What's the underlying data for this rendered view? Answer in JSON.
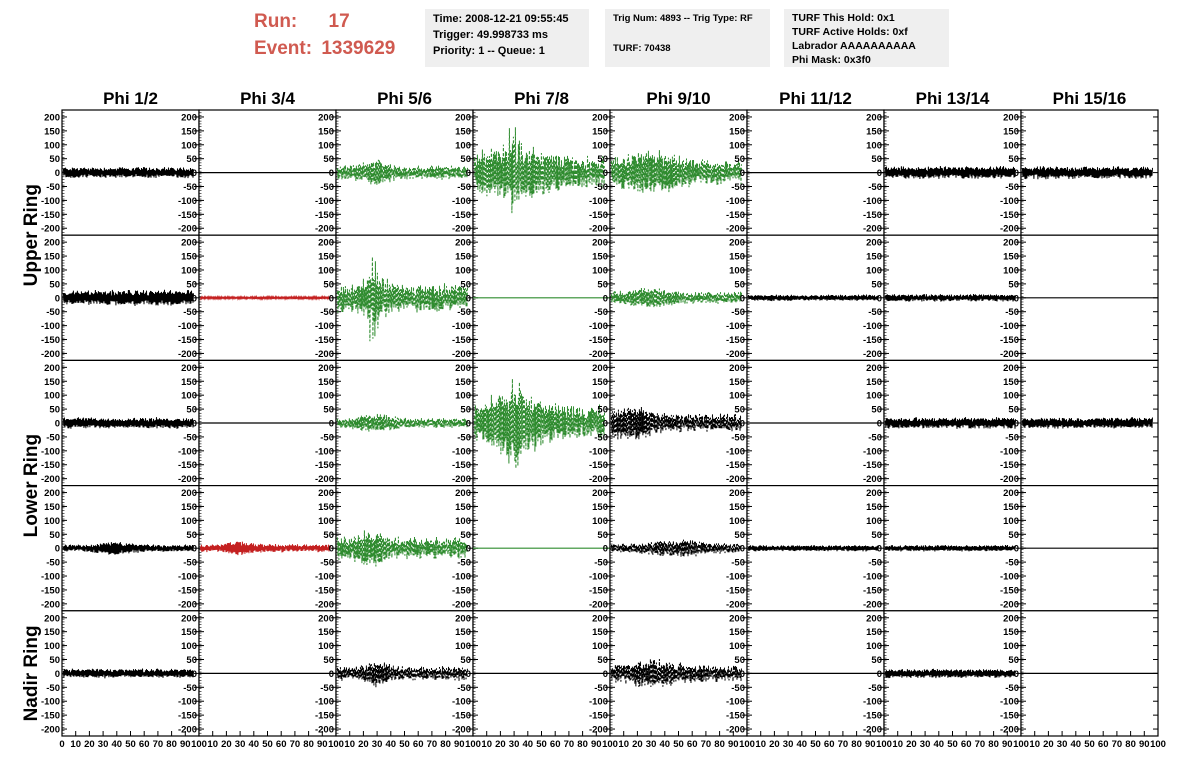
{
  "header": {
    "run_label": "Run:",
    "run_value": "17",
    "event_label": "Event:",
    "event_value": "1339629",
    "time": "Time: 2008-12-21 09:55:45",
    "trigger": "Trigger: 49.998733 ms",
    "priority": "Priority: 1 -- Queue: 1",
    "trig_num": "Trig Num: 4893 -- Trig Type: RF",
    "turf": "TURF: 70438",
    "turf_this_hold": "TURF This Hold: 0x1",
    "turf_active_holds": "TURF Active Holds: 0xf",
    "labrador": "Labrador AAAAAAAAAA",
    "phi_mask": "Phi Mask: 0x3f0"
  },
  "colors": {
    "normal": "#000000",
    "triggered": "#2e8b2e",
    "masked": "#c42020"
  },
  "chart_data": {
    "type": "line",
    "phi_labels": [
      "Phi 1/2",
      "Phi 3/4",
      "Phi 5/6",
      "Phi 7/8",
      "Phi 9/10",
      "Phi 11/12",
      "Phi 13/14",
      "Phi 15/16"
    ],
    "ring_labels": [
      {
        "text": "Upper Ring",
        "rows": [
          0,
          1
        ]
      },
      {
        "text": "Lower Ring",
        "rows": [
          2,
          3
        ]
      },
      {
        "text": "Nadir Ring",
        "rows": [
          4
        ]
      }
    ],
    "xlim": [
      0,
      100
    ],
    "ylim": [
      -225,
      225
    ],
    "x_ticks": [
      0,
      10,
      20,
      30,
      40,
      50,
      60,
      70,
      80,
      90,
      100
    ],
    "x_tick_labels": [
      "0",
      "10",
      "20",
      "30",
      "40",
      "50",
      "60",
      "70",
      "80",
      "90",
      "100"
    ],
    "y_ticks": [
      200,
      150,
      100,
      50,
      0,
      -50,
      -100,
      -150,
      -200
    ],
    "y_tick_labels": [
      "200",
      "150",
      "100",
      "50",
      "0",
      "-50",
      "-100",
      "-150",
      "-200"
    ],
    "waveforms": [
      [
        {
          "style": "normal",
          "amp": 18,
          "peak": 0,
          "pw": 0
        },
        {
          "style": "flat",
          "amp": 0,
          "peak": 0,
          "pw": 0
        },
        {
          "style": "triggered",
          "amp": 35,
          "peak": 30,
          "pw": 12
        },
        {
          "style": "triggered",
          "amp": 80,
          "peak": 30,
          "pw": 25
        },
        {
          "style": "triggered",
          "amp": 60,
          "peak": 30,
          "pw": 25
        },
        {
          "style": "flat",
          "amp": 0,
          "peak": 0,
          "pw": 0
        },
        {
          "style": "normal",
          "amp": 20,
          "peak": 0,
          "pw": 0
        },
        {
          "style": "normal",
          "amp": 20,
          "peak": 0,
          "pw": 0
        }
      ],
      [
        {
          "style": "normal",
          "amp": 25,
          "peak": 0,
          "pw": 0
        },
        {
          "style": "masked",
          "amp": 4,
          "peak": 0,
          "pw": 0
        },
        {
          "style": "triggered",
          "amp": 70,
          "peak": 28,
          "pw": 10
        },
        {
          "style": "flatgreen",
          "amp": 0,
          "peak": 0,
          "pw": 0
        },
        {
          "style": "triggered",
          "amp": 30,
          "peak": 30,
          "pw": 15
        },
        {
          "style": "normal",
          "amp": 10,
          "peak": 0,
          "pw": 0
        },
        {
          "style": "normal",
          "amp": 12,
          "peak": 0,
          "pw": 0
        },
        {
          "style": "flat",
          "amp": 0,
          "peak": 0,
          "pw": 0
        }
      ],
      [
        {
          "style": "normal",
          "amp": 18,
          "peak": 0,
          "pw": 0
        },
        {
          "style": "flat",
          "amp": 0,
          "peak": 0,
          "pw": 0
        },
        {
          "style": "triggered",
          "amp": 25,
          "peak": 30,
          "pw": 15
        },
        {
          "style": "triggered",
          "amp": 90,
          "peak": 30,
          "pw": 20
        },
        {
          "style": "dashed",
          "amp": 45,
          "peak": 15,
          "pw": 20
        },
        {
          "style": "flat",
          "amp": 0,
          "peak": 0,
          "pw": 0
        },
        {
          "style": "normal",
          "amp": 18,
          "peak": 0,
          "pw": 0
        },
        {
          "style": "normal",
          "amp": 18,
          "peak": 0,
          "pw": 0
        }
      ],
      [
        {
          "style": "normal",
          "amp": 18,
          "peak": 40,
          "pw": 15
        },
        {
          "style": "masked",
          "amp": 20,
          "peak": 30,
          "pw": 10
        },
        {
          "style": "triggered",
          "amp": 55,
          "peak": 25,
          "pw": 10
        },
        {
          "style": "flatgreen",
          "amp": 0,
          "peak": 0,
          "pw": 0
        },
        {
          "style": "dashed",
          "amp": 25,
          "peak": 50,
          "pw": 20
        },
        {
          "style": "normal",
          "amp": 10,
          "peak": 0,
          "pw": 0
        },
        {
          "style": "normal",
          "amp": 10,
          "peak": 0,
          "pw": 0
        },
        {
          "style": "flat",
          "amp": 0,
          "peak": 0,
          "pw": 0
        }
      ],
      [
        {
          "style": "normal",
          "amp": 15,
          "peak": 0,
          "pw": 0
        },
        {
          "style": "flat",
          "amp": 0,
          "peak": 0,
          "pw": 0
        },
        {
          "style": "dashed",
          "amp": 35,
          "peak": 30,
          "pw": 10
        },
        {
          "style": "flat",
          "amp": 0,
          "peak": 0,
          "pw": 0
        },
        {
          "style": "dashed",
          "amp": 40,
          "peak": 30,
          "pw": 20
        },
        {
          "style": "flat",
          "amp": 0,
          "peak": 0,
          "pw": 0
        },
        {
          "style": "normal",
          "amp": 15,
          "peak": 0,
          "pw": 0
        },
        {
          "style": "flat",
          "amp": 0,
          "peak": 0,
          "pw": 0
        }
      ]
    ]
  }
}
